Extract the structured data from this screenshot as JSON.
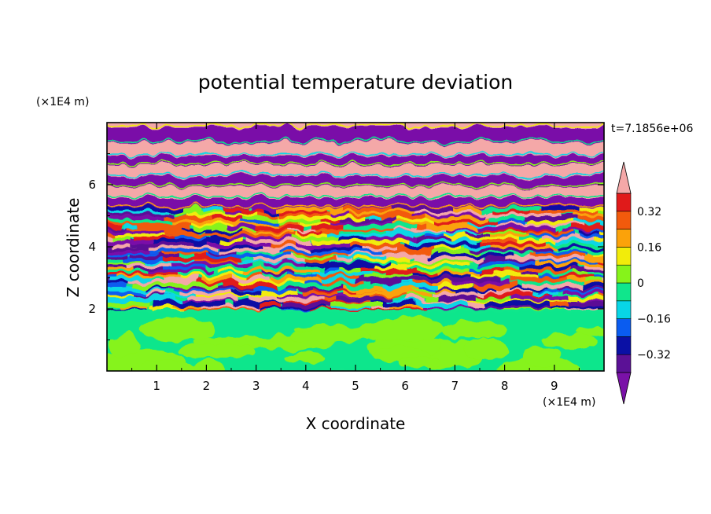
{
  "chart_data": {
    "type": "heatmap",
    "title": "potential temperature deviation",
    "xlabel": "X coordinate",
    "ylabel": "Z coordinate",
    "x_unit": "(×1E4 m)",
    "y_unit": "(×1E4 m)",
    "time_label": "t=7.1856e+06",
    "x_ticks": [
      "1",
      "2",
      "3",
      "4",
      "5",
      "6",
      "7",
      "8",
      "9"
    ],
    "y_ticks": [
      "2",
      "4",
      "6"
    ],
    "xlim": [
      0,
      10
    ],
    "ylim": [
      0,
      8
    ],
    "colorbar": {
      "labels": [
        "0.32",
        "0.16",
        "0",
        "−0.16",
        "−0.32"
      ],
      "levels": [
        -0.4,
        -0.32,
        -0.24,
        -0.16,
        -0.08,
        0,
        0.08,
        0.16,
        0.24,
        0.32,
        0.4
      ],
      "under_color": "#7a11a8",
      "over_color": "#f4a8a8",
      "colors": [
        "#5b1196",
        "#0a10a5",
        "#0a5cf0",
        "#08d6e6",
        "#10e68c",
        "#86f31a",
        "#f2ec0a",
        "#fba20a",
        "#f25a0c",
        "#e01a1a"
      ]
    }
  }
}
